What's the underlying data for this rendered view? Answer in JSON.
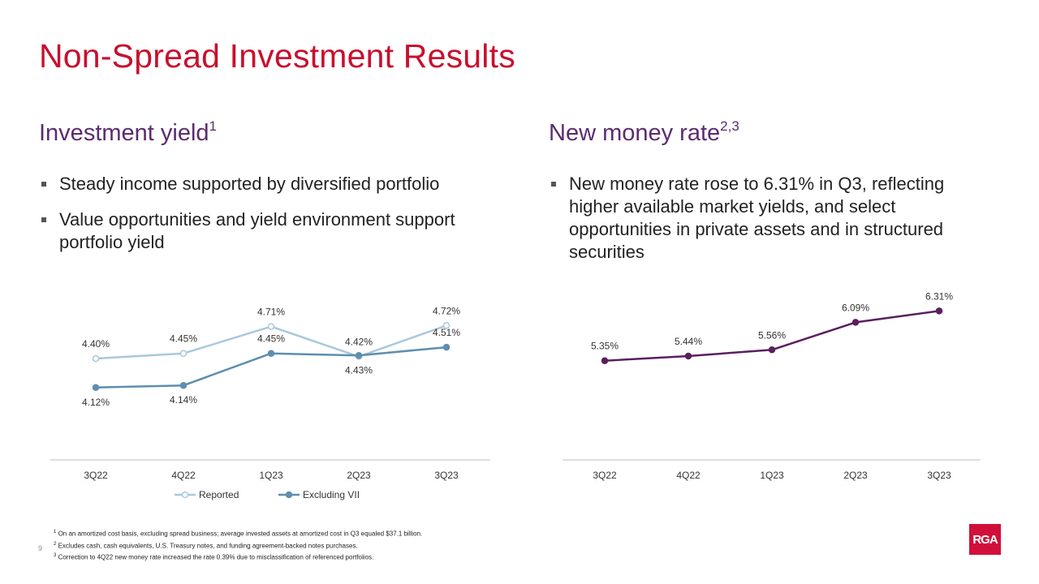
{
  "slide": {
    "title": "Non-Spread Investment Results",
    "page_number": "9",
    "logo_text": "RGA"
  },
  "left": {
    "heading": "Investment yield",
    "heading_sup": "1",
    "bullets": [
      "Steady income supported by diversified portfolio",
      "Value opportunities and yield environment support portfolio yield"
    ]
  },
  "right": {
    "heading": "New money rate",
    "heading_sup": "2,3",
    "bullets": [
      "New money rate rose to 6.31% in Q3, reflecting higher available market yields, and select opportunities in private assets and in structured securities"
    ]
  },
  "footnotes": [
    {
      "sup": "1",
      "text": "On an amortized cost basis, excluding spread business; average invested assets at amortized cost in Q3 equaled $37.1 billion."
    },
    {
      "sup": "2",
      "text": "Excludes cash, cash equivalents, U.S. Treasury notes, and funding agreement-backed notes purchases."
    },
    {
      "sup": "3",
      "text": "Correction to 4Q22 new money rate increased the rate 0.39% due to misclassification of referenced portfolios."
    }
  ],
  "colors": {
    "title": "#c8102e",
    "subhead": "#5b2c6f",
    "reported": "#a9c8dc",
    "excluding_vii": "#5e8eae",
    "new_money": "#5b1f5e",
    "logo": "#d0103a"
  },
  "chart_data": [
    {
      "type": "line",
      "title": "",
      "categories": [
        "3Q22",
        "4Q22",
        "1Q23",
        "2Q23",
        "3Q23"
      ],
      "series": [
        {
          "name": "Reported",
          "values": [
            4.4,
            4.45,
            4.71,
            4.42,
            4.72
          ],
          "labels": [
            "4.40%",
            "4.45%",
            "4.71%",
            "4.42%",
            "4.72%"
          ]
        },
        {
          "name": "Excluding VII",
          "values": [
            4.12,
            4.14,
            4.45,
            4.43,
            4.51
          ],
          "labels": [
            "4.12%",
            "4.14%",
            "4.45%",
            "4.43%",
            "4.51%"
          ]
        }
      ],
      "legend": "bottom",
      "ylim": [
        3.2,
        4.95
      ],
      "grid": false
    },
    {
      "type": "line",
      "title": "",
      "categories": [
        "3Q22",
        "4Q22",
        "1Q23",
        "2Q23",
        "3Q23"
      ],
      "series": [
        {
          "name": "New money rate",
          "values": [
            5.35,
            5.44,
            5.56,
            6.09,
            6.31
          ],
          "labels": [
            "5.35%",
            "5.44%",
            "5.56%",
            "6.09%",
            "6.31%"
          ]
        }
      ],
      "legend": "none",
      "ylim": [
        3.0,
        6.8
      ],
      "grid": false
    }
  ]
}
